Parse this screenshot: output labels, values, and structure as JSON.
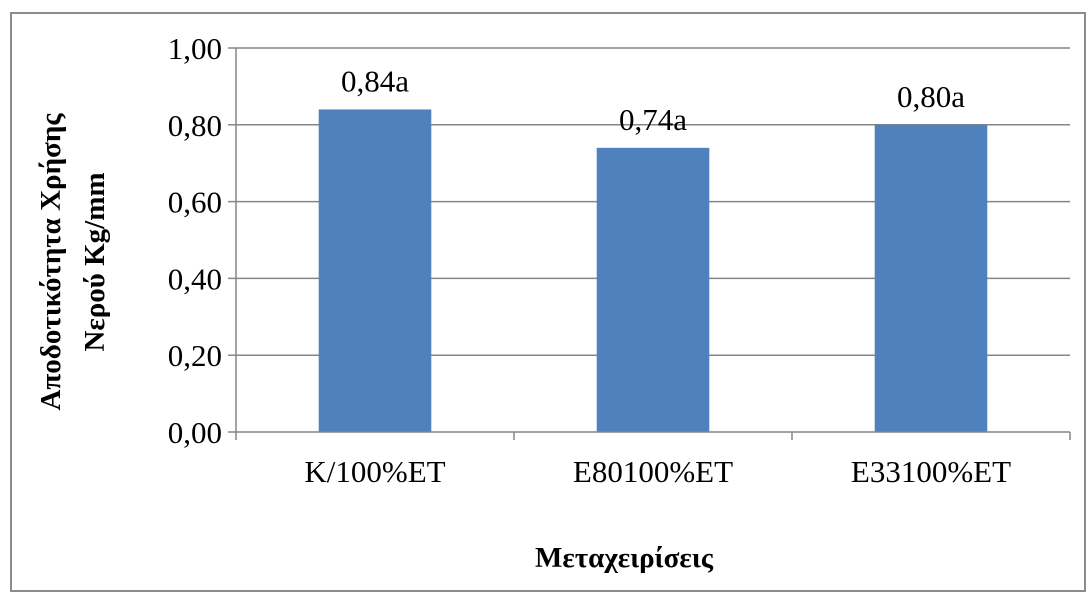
{
  "chart_data": {
    "type": "bar",
    "categories": [
      "K/100%ET",
      "E80100%ET",
      "E33100%ET"
    ],
    "values": [
      0.84,
      0.74,
      0.8
    ],
    "data_labels": [
      "0,84a",
      "0,74a",
      "0,80a"
    ],
    "ylabel_line1": "Αποδοτικότητα Χρήσης",
    "ylabel_line2": "Νερού Kg/mm",
    "xlabel": "Μεταχειρίσεις",
    "ylim": [
      0,
      1
    ],
    "yticks": [
      0,
      0.2,
      0.4,
      0.6,
      0.8,
      1.0
    ],
    "ytick_labels": [
      "0,00",
      "0,20",
      "0,40",
      "0,60",
      "0,80",
      "1,00"
    ],
    "grid": true,
    "legend": "none",
    "bar_color": "#4F81BD",
    "grid_color": "#868686"
  }
}
